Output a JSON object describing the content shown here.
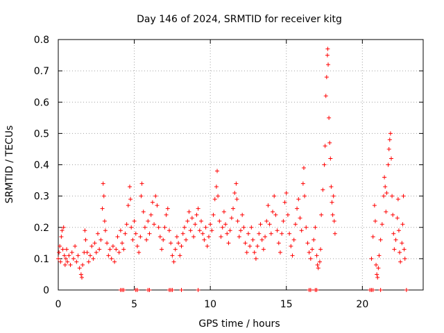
{
  "chart_data": {
    "type": "scatter",
    "title": "Day 146 of 2024, SRMTID for receiver kitg",
    "xlabel": "GPS time / hours",
    "ylabel": "SRMTID / TECUs",
    "xlim": [
      0,
      24
    ],
    "ylim": [
      0,
      0.8
    ],
    "xticks": [
      0,
      5,
      10,
      15,
      20
    ],
    "xtick_labels": [
      "0",
      "5",
      "10",
      "15",
      "20"
    ],
    "yticks": [
      0,
      0.1,
      0.2,
      0.3,
      0.4,
      0.5,
      0.6,
      0.7,
      0.8
    ],
    "ytick_labels": [
      "0",
      "0.1",
      "0.2",
      "0.3",
      "0.4",
      "0.5",
      "0.6",
      "0.7",
      "0.8"
    ],
    "grid": true,
    "marker": "+",
    "marker_color": "#ff0000",
    "series": [
      {
        "name": "SRMTID",
        "points": [
          [
            0.0,
            0.1
          ],
          [
            0.05,
            0.12
          ],
          [
            0.1,
            0.14
          ],
          [
            0.15,
            0.09
          ],
          [
            0.2,
            0.17
          ],
          [
            0.25,
            0.19
          ],
          [
            0.3,
            0.13
          ],
          [
            0.35,
            0.2
          ],
          [
            0.4,
            0.11
          ],
          [
            0.45,
            0.08
          ],
          [
            0.5,
            0.1
          ],
          [
            0.55,
            0.13
          ],
          [
            0.6,
            0.09
          ],
          [
            0.7,
            0.11
          ],
          [
            0.8,
            0.08
          ],
          [
            0.9,
            0.12
          ],
          [
            1.0,
            0.1
          ],
          [
            1.1,
            0.14
          ],
          [
            1.2,
            0.09
          ],
          [
            1.3,
            0.11
          ],
          [
            1.4,
            0.07
          ],
          [
            1.5,
            0.05
          ],
          [
            1.55,
            0.04
          ],
          [
            1.6,
            0.08
          ],
          [
            1.7,
            0.12
          ],
          [
            1.75,
            0.19
          ],
          [
            1.8,
            0.16
          ],
          [
            1.9,
            0.12
          ],
          [
            2.0,
            0.09
          ],
          [
            2.1,
            0.11
          ],
          [
            2.2,
            0.14
          ],
          [
            2.3,
            0.1
          ],
          [
            2.4,
            0.15
          ],
          [
            2.5,
            0.12
          ],
          [
            2.6,
            0.18
          ],
          [
            2.7,
            0.13
          ],
          [
            2.8,
            0.16
          ],
          [
            2.9,
            0.26
          ],
          [
            2.95,
            0.34
          ],
          [
            3.0,
            0.3
          ],
          [
            3.05,
            0.22
          ],
          [
            3.1,
            0.19
          ],
          [
            3.2,
            0.15
          ],
          [
            3.3,
            0.11
          ],
          [
            3.4,
            0.13
          ],
          [
            3.5,
            0.1
          ],
          [
            3.6,
            0.14
          ],
          [
            3.7,
            0.09
          ],
          [
            3.8,
            0.13
          ],
          [
            3.9,
            0.17
          ],
          [
            4.0,
            0.12
          ],
          [
            4.1,
            0.19
          ],
          [
            4.2,
            0.15
          ],
          [
            4.3,
            0.13
          ],
          [
            4.4,
            0.18
          ],
          [
            4.5,
            0.21
          ],
          [
            4.6,
            0.27
          ],
          [
            4.7,
            0.33
          ],
          [
            4.75,
            0.29
          ],
          [
            4.8,
            0.2
          ],
          [
            4.9,
            0.16
          ],
          [
            5.0,
            0.22
          ],
          [
            5.1,
            0.18
          ],
          [
            5.2,
            0.14
          ],
          [
            5.3,
            0.12
          ],
          [
            5.4,
            0.17
          ],
          [
            5.45,
            0.3
          ],
          [
            5.5,
            0.34
          ],
          [
            5.6,
            0.25
          ],
          [
            5.7,
            0.2
          ],
          [
            5.8,
            0.16
          ],
          [
            5.9,
            0.22
          ],
          [
            6.0,
            0.18
          ],
          [
            6.1,
            0.24
          ],
          [
            6.2,
            0.28
          ],
          [
            6.3,
            0.21
          ],
          [
            6.4,
            0.3
          ],
          [
            6.5,
            0.27
          ],
          [
            6.6,
            0.2
          ],
          [
            6.7,
            0.17
          ],
          [
            6.8,
            0.13
          ],
          [
            6.9,
            0.16
          ],
          [
            7.0,
            0.2
          ],
          [
            7.1,
            0.24
          ],
          [
            7.2,
            0.26
          ],
          [
            7.3,
            0.19
          ],
          [
            7.4,
            0.15
          ],
          [
            7.5,
            0.11
          ],
          [
            7.6,
            0.09
          ],
          [
            7.7,
            0.13
          ],
          [
            7.8,
            0.17
          ],
          [
            7.9,
            0.15
          ],
          [
            8.0,
            0.11
          ],
          [
            8.1,
            0.14
          ],
          [
            8.2,
            0.18
          ],
          [
            8.3,
            0.2
          ],
          [
            8.4,
            0.16
          ],
          [
            8.5,
            0.22
          ],
          [
            8.6,
            0.25
          ],
          [
            8.7,
            0.19
          ],
          [
            8.8,
            0.23
          ],
          [
            8.9,
            0.17
          ],
          [
            9.0,
            0.21
          ],
          [
            9.1,
            0.24
          ],
          [
            9.2,
            0.26
          ],
          [
            9.3,
            0.19
          ],
          [
            9.4,
            0.22
          ],
          [
            9.5,
            0.18
          ],
          [
            9.6,
            0.16
          ],
          [
            9.7,
            0.2
          ],
          [
            9.8,
            0.14
          ],
          [
            9.9,
            0.17
          ],
          [
            10.0,
            0.21
          ],
          [
            10.1,
            0.19
          ],
          [
            10.2,
            0.24
          ],
          [
            10.3,
            0.29
          ],
          [
            10.4,
            0.33
          ],
          [
            10.45,
            0.38
          ],
          [
            10.5,
            0.3
          ],
          [
            10.6,
            0.22
          ],
          [
            10.7,
            0.17
          ],
          [
            10.8,
            0.2
          ],
          [
            10.9,
            0.25
          ],
          [
            11.0,
            0.21
          ],
          [
            11.1,
            0.18
          ],
          [
            11.2,
            0.15
          ],
          [
            11.3,
            0.19
          ],
          [
            11.4,
            0.23
          ],
          [
            11.5,
            0.26
          ],
          [
            11.6,
            0.31
          ],
          [
            11.7,
            0.34
          ],
          [
            11.75,
            0.29
          ],
          [
            11.8,
            0.22
          ],
          [
            11.9,
            0.17
          ],
          [
            12.0,
            0.19
          ],
          [
            12.1,
            0.24
          ],
          [
            12.2,
            0.2
          ],
          [
            12.3,
            0.15
          ],
          [
            12.4,
            0.12
          ],
          [
            12.5,
            0.18
          ],
          [
            12.6,
            0.14
          ],
          [
            12.7,
            0.2
          ],
          [
            12.8,
            0.16
          ],
          [
            12.9,
            0.12
          ],
          [
            13.0,
            0.1
          ],
          [
            13.1,
            0.14
          ],
          [
            13.2,
            0.18
          ],
          [
            13.3,
            0.21
          ],
          [
            13.4,
            0.16
          ],
          [
            13.5,
            0.13
          ],
          [
            13.6,
            0.17
          ],
          [
            13.7,
            0.22
          ],
          [
            13.8,
            0.27
          ],
          [
            13.9,
            0.21
          ],
          [
            14.0,
            0.18
          ],
          [
            14.1,
            0.25
          ],
          [
            14.2,
            0.3
          ],
          [
            14.3,
            0.24
          ],
          [
            14.4,
            0.19
          ],
          [
            14.5,
            0.15
          ],
          [
            14.6,
            0.12
          ],
          [
            14.7,
            0.18
          ],
          [
            14.8,
            0.22
          ],
          [
            14.9,
            0.28
          ],
          [
            15.0,
            0.31
          ],
          [
            15.1,
            0.24
          ],
          [
            15.2,
            0.18
          ],
          [
            15.3,
            0.14
          ],
          [
            15.4,
            0.11
          ],
          [
            15.5,
            0.16
          ],
          [
            15.6,
            0.21
          ],
          [
            15.7,
            0.26
          ],
          [
            15.8,
            0.29
          ],
          [
            15.9,
            0.23
          ],
          [
            16.0,
            0.19
          ],
          [
            16.1,
            0.34
          ],
          [
            16.15,
            0.39
          ],
          [
            16.2,
            0.3
          ],
          [
            16.3,
            0.2
          ],
          [
            16.4,
            0.15
          ],
          [
            16.5,
            0.12
          ],
          [
            16.6,
            0.1
          ],
          [
            16.7,
            0.13
          ],
          [
            16.8,
            0.16
          ],
          [
            16.9,
            0.2
          ],
          [
            17.0,
            0.11
          ],
          [
            17.05,
            0.08
          ],
          [
            17.1,
            0.07
          ],
          [
            17.2,
            0.09
          ],
          [
            17.25,
            0.13
          ],
          [
            17.3,
            0.24
          ],
          [
            17.4,
            0.32
          ],
          [
            17.5,
            0.4
          ],
          [
            17.55,
            0.46
          ],
          [
            17.6,
            0.62
          ],
          [
            17.65,
            0.68
          ],
          [
            17.7,
            0.75
          ],
          [
            17.72,
            0.77
          ],
          [
            17.75,
            0.72
          ],
          [
            17.8,
            0.55
          ],
          [
            17.85,
            0.47
          ],
          [
            17.9,
            0.42
          ],
          [
            17.95,
            0.33
          ],
          [
            18.0,
            0.28
          ],
          [
            18.05,
            0.24
          ],
          [
            18.1,
            0.3
          ],
          [
            18.15,
            0.22
          ],
          [
            18.2,
            0.18
          ],
          [
            20.6,
            0.1
          ],
          [
            20.7,
            0.17
          ],
          [
            20.8,
            0.27
          ],
          [
            20.85,
            0.22
          ],
          [
            20.9,
            0.08
          ],
          [
            20.95,
            0.05
          ],
          [
            21.0,
            0.04
          ],
          [
            21.05,
            0.07
          ],
          [
            21.1,
            0.11
          ],
          [
            21.2,
            0.16
          ],
          [
            21.3,
            0.21
          ],
          [
            21.4,
            0.3
          ],
          [
            21.45,
            0.36
          ],
          [
            21.5,
            0.33
          ],
          [
            21.55,
            0.25
          ],
          [
            21.6,
            0.31
          ],
          [
            21.7,
            0.4
          ],
          [
            21.75,
            0.45
          ],
          [
            21.8,
            0.48
          ],
          [
            21.85,
            0.5
          ],
          [
            21.9,
            0.42
          ],
          [
            21.95,
            0.3
          ],
          [
            22.0,
            0.24
          ],
          [
            22.05,
            0.18
          ],
          [
            22.1,
            0.13
          ],
          [
            22.2,
            0.16
          ],
          [
            22.3,
            0.23
          ],
          [
            22.35,
            0.29
          ],
          [
            22.4,
            0.19
          ],
          [
            22.45,
            0.12
          ],
          [
            22.5,
            0.09
          ],
          [
            22.6,
            0.15
          ],
          [
            22.65,
            0.21
          ],
          [
            22.7,
            0.3
          ],
          [
            22.75,
            0.13
          ],
          [
            22.8,
            0.1
          ]
        ]
      }
    ],
    "zero_marks": [
      4.1,
      4.2,
      4.3,
      5.1,
      5.2,
      5.9,
      6.0,
      7.3,
      7.4,
      7.5,
      8.1,
      9.2,
      16.5,
      16.6,
      16.9,
      17.0,
      20.5,
      20.6,
      20.7,
      21.2,
      22.9
    ]
  }
}
